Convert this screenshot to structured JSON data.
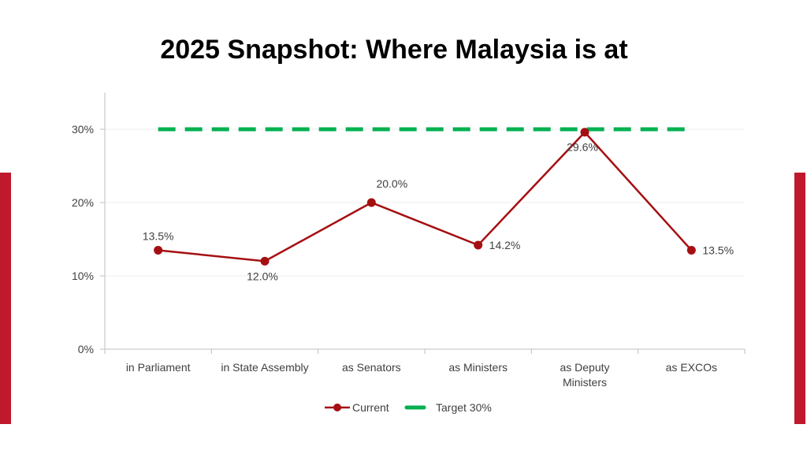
{
  "chart_data": {
    "type": "line",
    "title": "2025 Snapshot: Where Malaysia is at",
    "categories": [
      "in Parliament",
      "in State Assembly",
      "as Senators",
      "as Ministers",
      "as Deputy Ministers",
      "as EXCOs"
    ],
    "series": [
      {
        "name": "Current",
        "values": [
          13.5,
          12.0,
          20.0,
          14.2,
          29.6,
          13.5
        ],
        "labels": [
          "13.5%",
          "12.0%",
          "20.0%",
          "14.2%",
          "29.6%",
          "13.5%"
        ],
        "label_positions": [
          "above",
          "below",
          "above",
          "right",
          "below",
          "right"
        ],
        "color": "#a50f12",
        "style": "solid-markers"
      },
      {
        "name": "Target 30%",
        "values": [
          30,
          30,
          30,
          30,
          30,
          30
        ],
        "color": "#00b050",
        "style": "dashed"
      }
    ],
    "yticks": [
      0,
      10,
      20,
      30
    ],
    "ytick_labels": [
      "0%",
      "10%",
      "20%",
      "30%"
    ],
    "ylim": [
      0,
      35
    ],
    "grid": true,
    "legend": "bottom",
    "xlabel": "",
    "ylabel": ""
  },
  "accent_color": "#c0182c"
}
